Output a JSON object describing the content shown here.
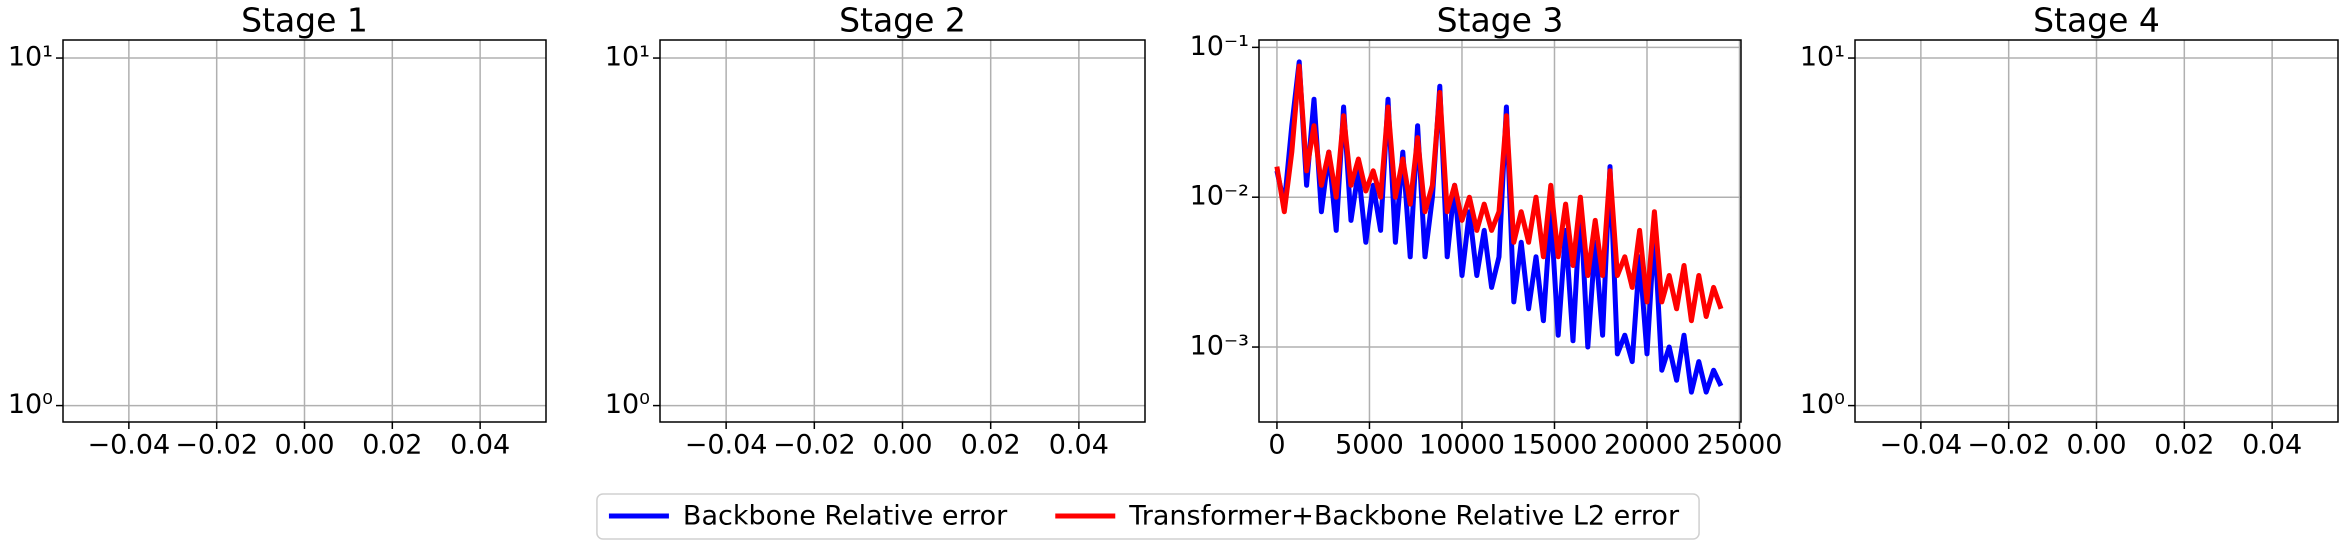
{
  "chart_data": [
    {
      "type": "line",
      "title": "Stage 1",
      "log_y": true,
      "grid": true,
      "series": [],
      "xlim": [
        -0.055,
        0.055
      ],
      "xticks": [
        {
          "value": -0.04,
          "label": "−0.04"
        },
        {
          "value": -0.02,
          "label": "−0.02"
        },
        {
          "value": 0,
          "label": "0.00"
        },
        0.02,
        0.04
      ],
      "ylim": [
        0.897,
        11.27
      ],
      "yticks": [
        {
          "value": 1,
          "label": "10⁰"
        },
        {
          "value": 10,
          "label": "10¹"
        }
      ]
    },
    {
      "type": "line",
      "title": "Stage 2",
      "log_y": true,
      "grid": true,
      "series": [],
      "xlim": [
        -0.055,
        0.055
      ],
      "xticks": [
        {
          "value": -0.04,
          "label": "−0.04"
        },
        {
          "value": -0.02,
          "label": "−0.02"
        },
        {
          "value": 0,
          "label": "0.00"
        },
        0.02,
        0.04
      ],
      "ylim": [
        0.897,
        11.27
      ],
      "yticks": [
        {
          "value": 1,
          "label": "10⁰"
        },
        {
          "value": 10,
          "label": "10¹"
        }
      ]
    },
    {
      "type": "line",
      "title": "Stage 3",
      "log_y": true,
      "grid": true,
      "legend": "lower center",
      "xlim": [
        -970,
        25080
      ],
      "xticks": [
        0,
        5000,
        10000,
        15000,
        20000,
        25000
      ],
      "ylim": [
        0.000316,
        0.112
      ],
      "yticks": [
        {
          "value": 0.001,
          "label": "10⁻³"
        },
        {
          "value": 0.01,
          "label": "10⁻²"
        },
        {
          "value": 0.1,
          "label": "10⁻¹"
        }
      ],
      "x": [
        0,
        400,
        800,
        1200,
        1600,
        2000,
        2400,
        2800,
        3200,
        3600,
        4000,
        4400,
        4800,
        5200,
        5600,
        6000,
        6400,
        6800,
        7200,
        7600,
        8000,
        8400,
        8800,
        9200,
        9600,
        10000,
        10400,
        10800,
        11200,
        11600,
        12000,
        12400,
        12800,
        13200,
        13600,
        14000,
        14400,
        14800,
        15200,
        15600,
        16000,
        16400,
        16800,
        17200,
        17600,
        18000,
        18400,
        18800,
        19200,
        19600,
        20000,
        20400,
        20800,
        21200,
        21600,
        22000,
        22400,
        22800,
        23200,
        23600,
        24000
      ],
      "series": [
        {
          "name": "Backbone Relative error",
          "color": "#0000ff",
          "values": [
            0.015,
            0.009,
            0.03,
            0.08,
            0.012,
            0.045,
            0.008,
            0.02,
            0.006,
            0.04,
            0.007,
            0.015,
            0.005,
            0.012,
            0.006,
            0.045,
            0.005,
            0.02,
            0.004,
            0.03,
            0.004,
            0.01,
            0.055,
            0.004,
            0.012,
            0.003,
            0.008,
            0.003,
            0.006,
            0.0025,
            0.004,
            0.04,
            0.002,
            0.005,
            0.0018,
            0.004,
            0.0015,
            0.008,
            0.0012,
            0.006,
            0.0011,
            0.009,
            0.001,
            0.005,
            0.0012,
            0.016,
            0.0009,
            0.0012,
            0.0008,
            0.004,
            0.0009,
            0.006,
            0.0007,
            0.001,
            0.0006,
            0.0012,
            0.0005,
            0.0008,
            0.0005,
            0.0007,
            0.00055
          ]
        },
        {
          "name": "Transformer+Backbone Relative L2 error",
          "color": "#ff0000",
          "values": [
            0.016,
            0.008,
            0.02,
            0.075,
            0.015,
            0.03,
            0.012,
            0.02,
            0.01,
            0.035,
            0.012,
            0.018,
            0.011,
            0.015,
            0.01,
            0.04,
            0.01,
            0.018,
            0.009,
            0.025,
            0.008,
            0.012,
            0.05,
            0.008,
            0.012,
            0.007,
            0.01,
            0.006,
            0.009,
            0.006,
            0.008,
            0.035,
            0.005,
            0.008,
            0.005,
            0.01,
            0.004,
            0.012,
            0.004,
            0.009,
            0.0035,
            0.01,
            0.003,
            0.007,
            0.003,
            0.015,
            0.003,
            0.004,
            0.0025,
            0.006,
            0.002,
            0.008,
            0.002,
            0.003,
            0.0018,
            0.0035,
            0.0015,
            0.003,
            0.0016,
            0.0025,
            0.0018
          ]
        }
      ]
    },
    {
      "type": "line",
      "title": "Stage 4",
      "log_y": true,
      "grid": true,
      "series": [],
      "xlim": [
        -0.055,
        0.055
      ],
      "xticks": [
        {
          "value": -0.04,
          "label": "−0.04"
        },
        {
          "value": -0.02,
          "label": "−0.02"
        },
        {
          "value": 0,
          "label": "0.00"
        },
        0.02,
        0.04
      ],
      "ylim": [
        0.897,
        11.27
      ],
      "yticks": [
        {
          "value": 1,
          "label": "10⁰"
        },
        {
          "value": 10,
          "label": "10¹"
        }
      ]
    }
  ]
}
